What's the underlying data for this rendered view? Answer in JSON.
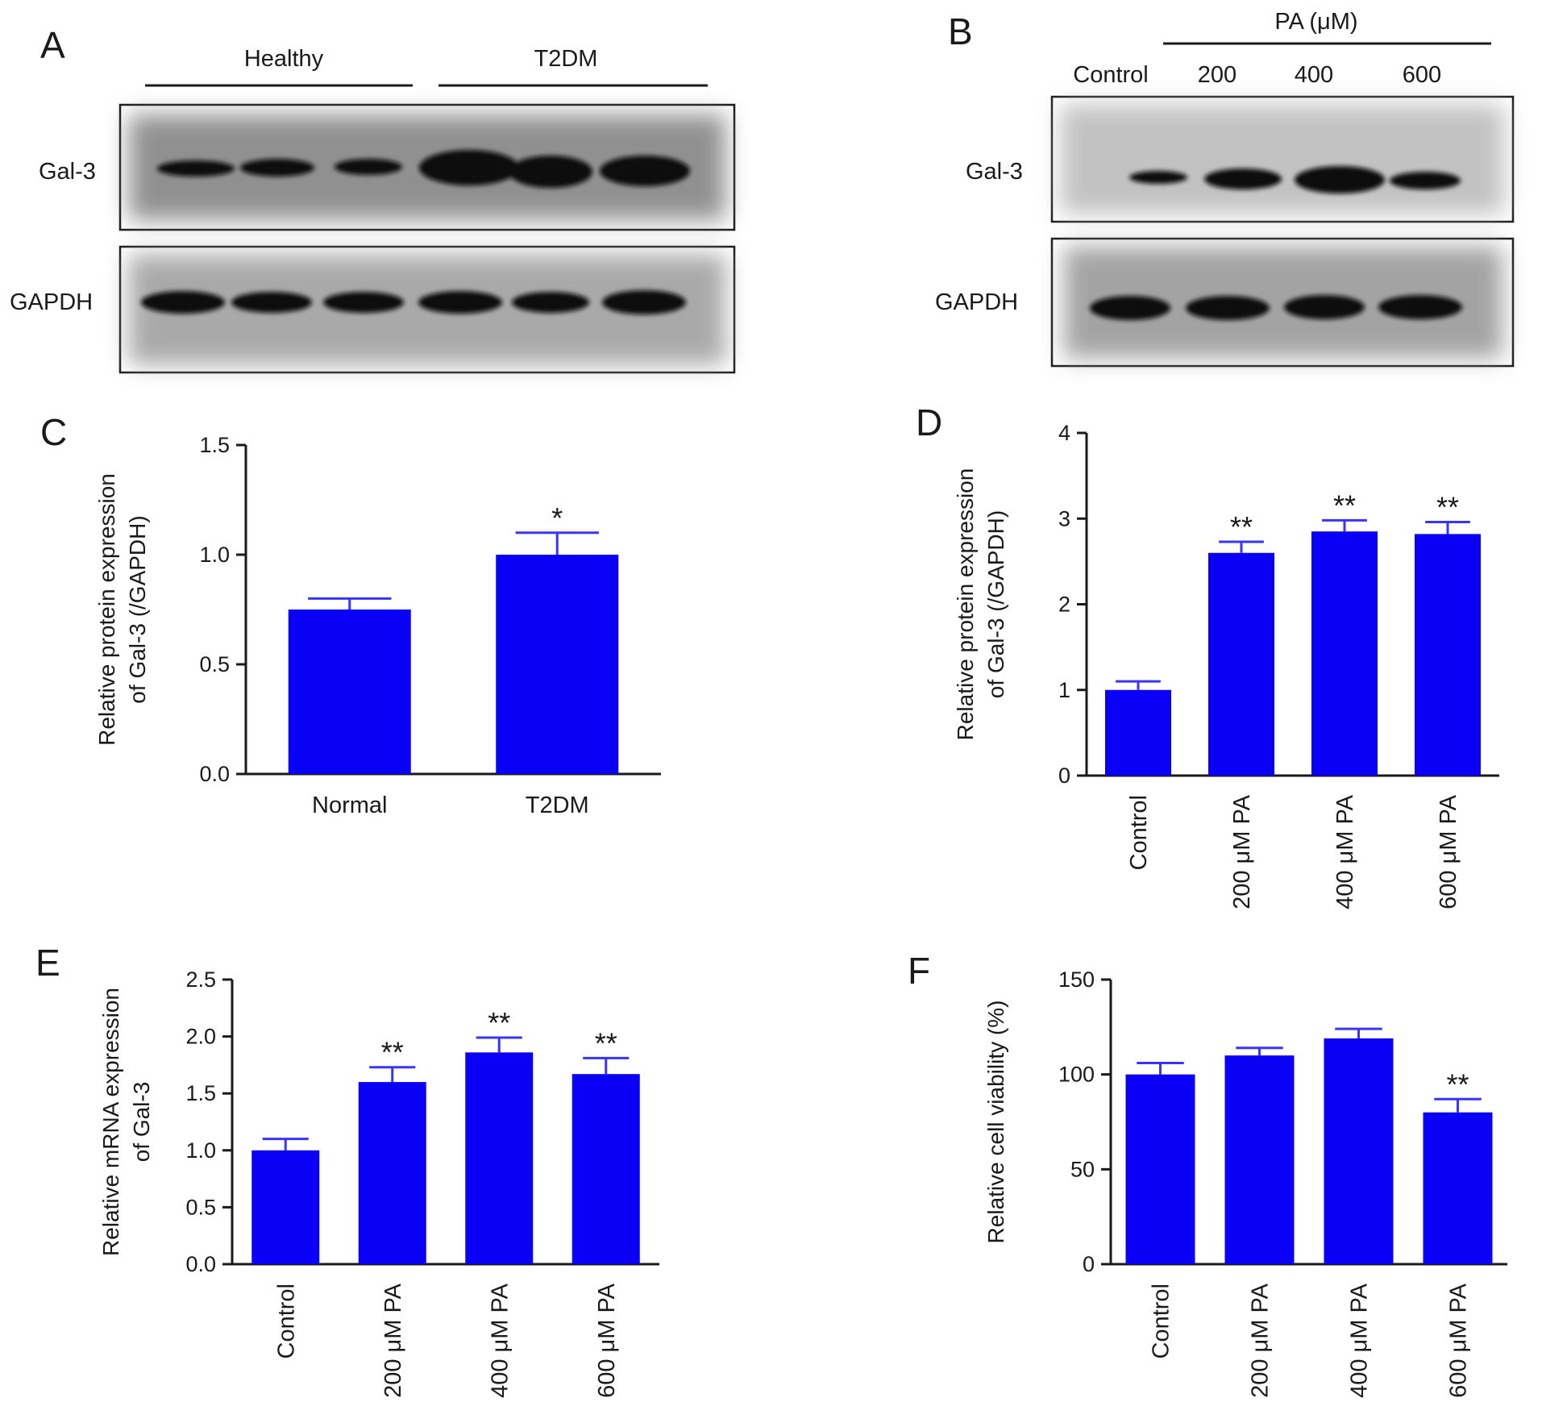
{
  "colors": {
    "bar": "#0a00f5",
    "error": "#3a33ff",
    "axis": "#1a1a1a",
    "blot_bg": "#8f8f8f",
    "band": "#0d0d0d"
  },
  "blots": {
    "A": {
      "letter": "A",
      "groups": [
        "Healthy",
        "T2DM"
      ],
      "rows": [
        "Gal-3",
        "GAPDH"
      ]
    },
    "B": {
      "letter": "B",
      "header": "PA (μM)",
      "lanes": [
        "Control",
        "200",
        "400",
        "600"
      ],
      "rows": [
        "Gal-3",
        "GAPDH"
      ]
    }
  },
  "chart_data": [
    {
      "panel": "C",
      "type": "bar",
      "categories": [
        "Normal",
        "T2DM"
      ],
      "values": [
        0.75,
        1.0
      ],
      "errors": [
        0.05,
        0.1
      ],
      "significance": [
        "",
        "*"
      ],
      "ylabel_lines": [
        "Relative protein expression",
        "of Gal-3 (/GAPDH)"
      ],
      "ylim": [
        0,
        1.5
      ],
      "yticks": [
        "0.0",
        "0.5",
        "1.0",
        "1.5"
      ],
      "rotate_categories": false
    },
    {
      "panel": "D",
      "type": "bar",
      "categories": [
        "Control",
        "200 μM PA",
        "400 μM PA",
        "600 μM PA"
      ],
      "values": [
        1.0,
        2.6,
        2.85,
        2.82
      ],
      "errors": [
        0.1,
        0.13,
        0.13,
        0.14
      ],
      "significance": [
        "",
        "**",
        "**",
        "**"
      ],
      "ylabel_lines": [
        "Relative protein expression",
        "of Gal-3 (/GAPDH)"
      ],
      "ylim": [
        0,
        4
      ],
      "yticks": [
        "0",
        "1",
        "2",
        "3",
        "4"
      ],
      "rotate_categories": true
    },
    {
      "panel": "E",
      "type": "bar",
      "categories": [
        "Control",
        "200 μM PA",
        "400 μM PA",
        "600 μM PA"
      ],
      "values": [
        1.0,
        1.6,
        1.86,
        1.67
      ],
      "errors": [
        0.1,
        0.13,
        0.13,
        0.14
      ],
      "significance": [
        "",
        "**",
        "**",
        "**"
      ],
      "ylabel_lines": [
        "Relative mRNA expression",
        "of Gal-3"
      ],
      "ylim": [
        0,
        2.5
      ],
      "yticks": [
        "0.0",
        "0.5",
        "1.0",
        "1.5",
        "2.0",
        "2.5"
      ],
      "rotate_categories": true
    },
    {
      "panel": "F",
      "type": "bar",
      "categories": [
        "Control",
        "200 μM PA",
        "400 μM PA",
        "600 μM PA"
      ],
      "values": [
        100,
        110,
        119,
        80
      ],
      "errors": [
        6,
        4,
        5,
        7
      ],
      "significance": [
        "",
        "",
        "",
        "**"
      ],
      "ylabel_lines": [
        "Relative cell viability (%)"
      ],
      "ylim": [
        0,
        150
      ],
      "yticks": [
        "0",
        "50",
        "100",
        "150"
      ],
      "rotate_categories": true
    }
  ]
}
